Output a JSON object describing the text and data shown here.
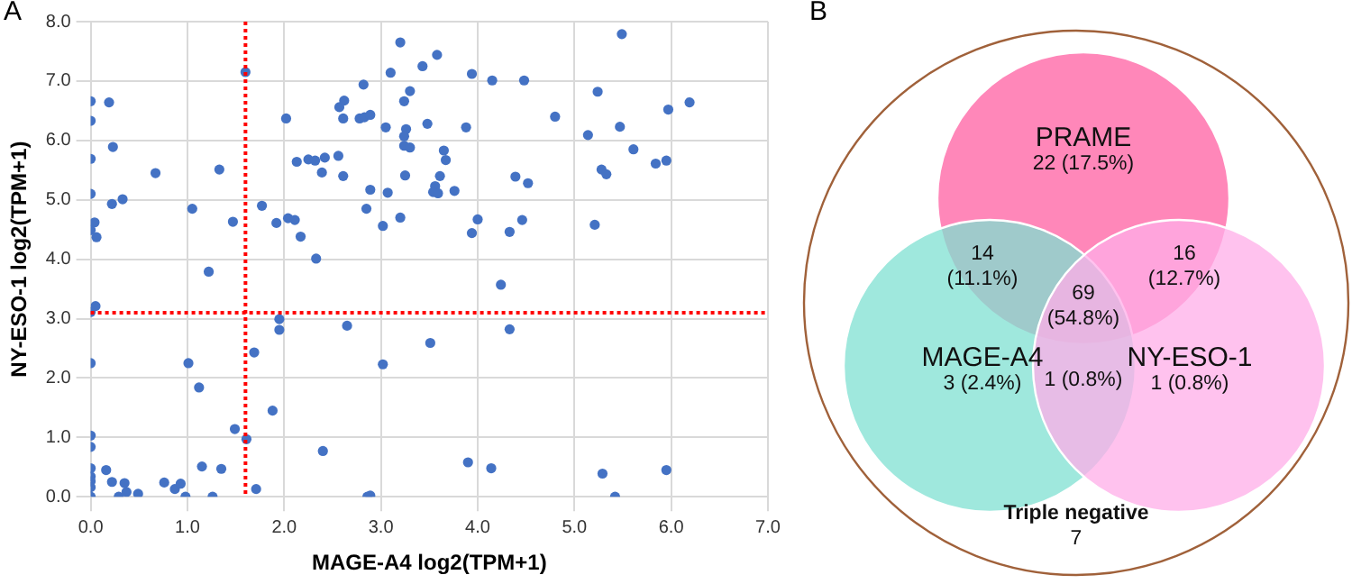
{
  "chart_data": [
    {
      "type": "scatter",
      "title": "A",
      "xlabel": "MAGE-A4 log2(TPM+1)",
      "ylabel": "NY-ESO-1 log2(TPM+1)",
      "xlim": [
        0,
        7
      ],
      "ylim": [
        0,
        8
      ],
      "xticks": [
        {
          "value": 0,
          "label": "0.0"
        },
        {
          "value": 1,
          "label": "1.0"
        },
        {
          "value": 2,
          "label": "2.0"
        },
        {
          "value": 3,
          "label": "3.0"
        },
        {
          "value": 4,
          "label": "4.0"
        },
        {
          "value": 5,
          "label": "5.0"
        },
        {
          "value": 6,
          "label": "6.0"
        },
        {
          "value": 7,
          "label": "7.0"
        }
      ],
      "yticks": [
        {
          "value": 0,
          "label": "0.0"
        },
        {
          "value": 1,
          "label": "1.0"
        },
        {
          "value": 2,
          "label": "2.0"
        },
        {
          "value": 3,
          "label": "3.0"
        },
        {
          "value": 4,
          "label": "4.0"
        },
        {
          "value": 5,
          "label": "5.0"
        },
        {
          "value": 6,
          "label": "6.0"
        },
        {
          "value": 7,
          "label": "7.0"
        },
        {
          "value": 8,
          "label": "8.0"
        }
      ],
      "grid": true,
      "marker": "circle",
      "legend": false,
      "ref_lines": [
        {
          "axis": "x",
          "value": 1.6,
          "color": "#ff0000",
          "line_style": "dotted"
        },
        {
          "axis": "y",
          "value": 3.1,
          "color": "#ff0000",
          "line_style": "dotted"
        }
      ],
      "series": [
        {
          "color": "#4472c4",
          "x": [
            0,
            0,
            0.19,
            0.23,
            0,
            0.67,
            1.33,
            0,
            0.22,
            0.33,
            1.05,
            1.6,
            0.04,
            0,
            0.06,
            1.47,
            1.77,
            1.22,
            1.92,
            2.02,
            2.04,
            2.11,
            2.13,
            2.17,
            2.33,
            2.25,
            2.32,
            2.42,
            2.39,
            2.56,
            2.61,
            2.57,
            2.62,
            2.61,
            2.82,
            2.78,
            2.83,
            2.89,
            3.2,
            3.1,
            3.43,
            3.58,
            3.3,
            3.24,
            3.05,
            3.26,
            3.24,
            3.48,
            3.88,
            3.94,
            4.15,
            4.48,
            4.8,
            5.24,
            5.49,
            5.14,
            5.47,
            5.97,
            6.19,
            3.24,
            3.3,
            3.65,
            3.67,
            5.61,
            5.28,
            5.33,
            5.84,
            5.95,
            3.25,
            3.61,
            4.39,
            4.52,
            2.89,
            3.07,
            3.56,
            3.54,
            3.59,
            3.76,
            2.85,
            3.02,
            3.2,
            4,
            3.94,
            4.33,
            4.46,
            5.21,
            0.05,
            0,
            1.95,
            1.95,
            1.69,
            2.65,
            0,
            1.01,
            1.12,
            1.88,
            0,
            0,
            1.49,
            1.61,
            2.4,
            0,
            0,
            0,
            0,
            0.16,
            0.22,
            0.35,
            0.37,
            0.49,
            0,
            0.29,
            0.76,
            0.87,
            0.93,
            0.98,
            1.15,
            1.35,
            1.26,
            1.71,
            4.24,
            4.33,
            3.51,
            3.02,
            3.9,
            4.14,
            5.29,
            5.95,
            2.86,
            2.89,
            5.42
          ],
          "values": [
            6.66,
            6.33,
            6.64,
            5.89,
            5.69,
            5.45,
            5.51,
            5.1,
            4.93,
            5.01,
            4.85,
            7.15,
            4.62,
            4.49,
            4.37,
            4.63,
            4.9,
            3.79,
            4.61,
            6.37,
            4.69,
            4.66,
            5.64,
            4.38,
            4.01,
            5.68,
            5.66,
            5.71,
            5.46,
            5.74,
            5.4,
            6.56,
            6.67,
            6.37,
            6.94,
            6.37,
            6.39,
            6.43,
            7.65,
            7.14,
            7.25,
            7.44,
            6.83,
            6.66,
            6.22,
            6.19,
            6.07,
            6.28,
            6.22,
            7.12,
            7.01,
            7.01,
            6.4,
            6.82,
            7.79,
            6.09,
            6.23,
            6.52,
            6.64,
            5.91,
            5.88,
            5.83,
            5.67,
            5.85,
            5.51,
            5.43,
            5.61,
            5.66,
            5.41,
            5.4,
            5.39,
            5.28,
            5.17,
            5.12,
            5.23,
            5.13,
            5.11,
            5.15,
            4.85,
            4.56,
            4.7,
            4.67,
            4.44,
            4.46,
            4.66,
            4.58,
            3.21,
            3.11,
            2.99,
            2.81,
            2.43,
            2.88,
            2.25,
            2.25,
            1.84,
            1.45,
            1.03,
            0.84,
            1.14,
            0.97,
            0.77,
            0.48,
            0.34,
            0.26,
            0.16,
            0.45,
            0.25,
            0.23,
            0.08,
            0.05,
            0,
            0,
            0.24,
            0.13,
            0.22,
            0,
            0.51,
            0.47,
            0,
            0.13,
            3.57,
            2.82,
            2.59,
            2.23,
            0.58,
            0.48,
            0.39,
            0.45,
            0,
            0.02,
            0
          ]
        }
      ]
    },
    {
      "type": "other",
      "title": "B",
      "categories": [
        "PRAME",
        "MAGE-A4",
        "NY-ESO-1"
      ],
      "values": [
        22,
        3,
        1
      ],
      "value_labels": [
        "22 (17.5%)",
        "3 (2.4%)",
        "1 (0.8%)"
      ],
      "colors": [
        "#ff5fa2",
        "#7fe0d2",
        "#ffaee8"
      ],
      "annotations": [
        "14 (11.1%)",
        "16 (12.7%)",
        "69 (54.8%)",
        "1 (0.8%)",
        "Triple negative",
        "7"
      ]
    }
  ]
}
